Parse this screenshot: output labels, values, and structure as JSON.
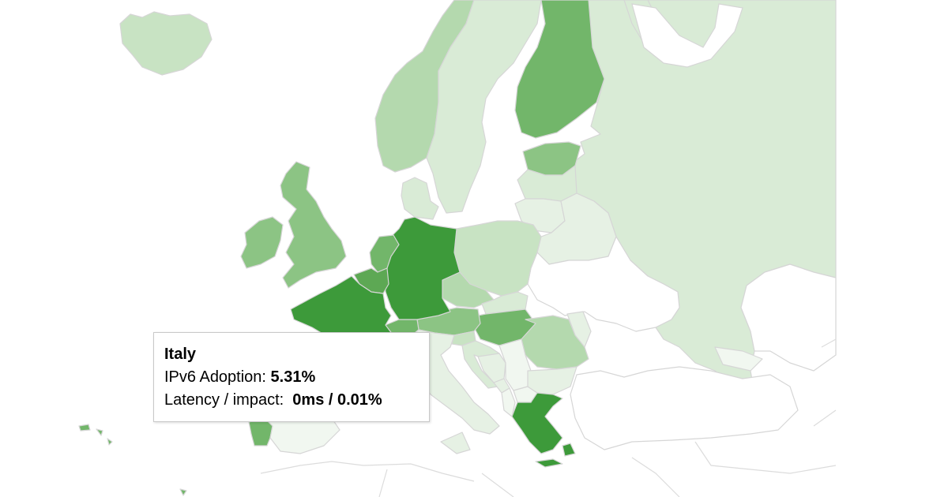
{
  "colors": {
    "c0": "#ffffff",
    "c1": "#f1f7f0",
    "c2": "#e6f1e4",
    "c3": "#d9ebd6",
    "c4": "#c8e3c3",
    "c5": "#b4d9ae",
    "c6": "#8cc484",
    "c7": "#72b66a",
    "c8": "#5da854",
    "c9": "#3d9a3a",
    "border": "#d6d6d6"
  },
  "countries": [
    {
      "name": "Iceland",
      "shade": "c4"
    },
    {
      "name": "Norway",
      "shade": "c5"
    },
    {
      "name": "Sweden",
      "shade": "c3"
    },
    {
      "name": "Finland",
      "shade": "c7"
    },
    {
      "name": "Russia",
      "shade": "c3"
    },
    {
      "name": "Estonia",
      "shade": "c6"
    },
    {
      "name": "Latvia",
      "shade": "c3"
    },
    {
      "name": "Lithuania",
      "shade": "c2"
    },
    {
      "name": "Belarus",
      "shade": "c2"
    },
    {
      "name": "United Kingdom",
      "shade": "c6"
    },
    {
      "name": "Ireland",
      "shade": "c6"
    },
    {
      "name": "Denmark",
      "shade": "c3"
    },
    {
      "name": "Netherlands",
      "shade": "c7"
    },
    {
      "name": "Belgium",
      "shade": "c8"
    },
    {
      "name": "Germany",
      "shade": "c9"
    },
    {
      "name": "France",
      "shade": "c9"
    },
    {
      "name": "Poland",
      "shade": "c4"
    },
    {
      "name": "Czechia",
      "shade": "c5"
    },
    {
      "name": "Slovakia",
      "shade": "c3"
    },
    {
      "name": "Austria",
      "shade": "c6"
    },
    {
      "name": "Switzerland",
      "shade": "c7"
    },
    {
      "name": "Hungary",
      "shade": "c7"
    },
    {
      "name": "Ukraine",
      "shade": "c0"
    },
    {
      "name": "Moldova",
      "shade": "c2"
    },
    {
      "name": "Romania",
      "shade": "c5"
    },
    {
      "name": "Slovenia",
      "shade": "c4"
    },
    {
      "name": "Croatia",
      "shade": "c3"
    },
    {
      "name": "Bosnia and Herzegovina",
      "shade": "c2"
    },
    {
      "name": "Serbia",
      "shade": "c1"
    },
    {
      "name": "Montenegro",
      "shade": "c2"
    },
    {
      "name": "Albania",
      "shade": "c1"
    },
    {
      "name": "North Macedonia",
      "shade": "c1"
    },
    {
      "name": "Bulgaria",
      "shade": "c2"
    },
    {
      "name": "Greece",
      "shade": "c9"
    },
    {
      "name": "Italy",
      "shade": "c2"
    },
    {
      "name": "Spain",
      "shade": "c1"
    },
    {
      "name": "Portugal",
      "shade": "c7"
    },
    {
      "name": "Turkey",
      "shade": "c0"
    },
    {
      "name": "Georgia",
      "shade": "c1"
    },
    {
      "name": "Kazakhstan",
      "shade": "c0"
    },
    {
      "name": "Azores",
      "shade": "c7"
    },
    {
      "name": "Madeira",
      "shade": "c7"
    }
  ],
  "tooltip": {
    "country": "Italy",
    "adoption_label": "IPv6 Adoption: ",
    "adoption_value": "5.31%",
    "latency_label": "Latency / impact:  ",
    "latency_value": "0ms / 0.01%"
  }
}
